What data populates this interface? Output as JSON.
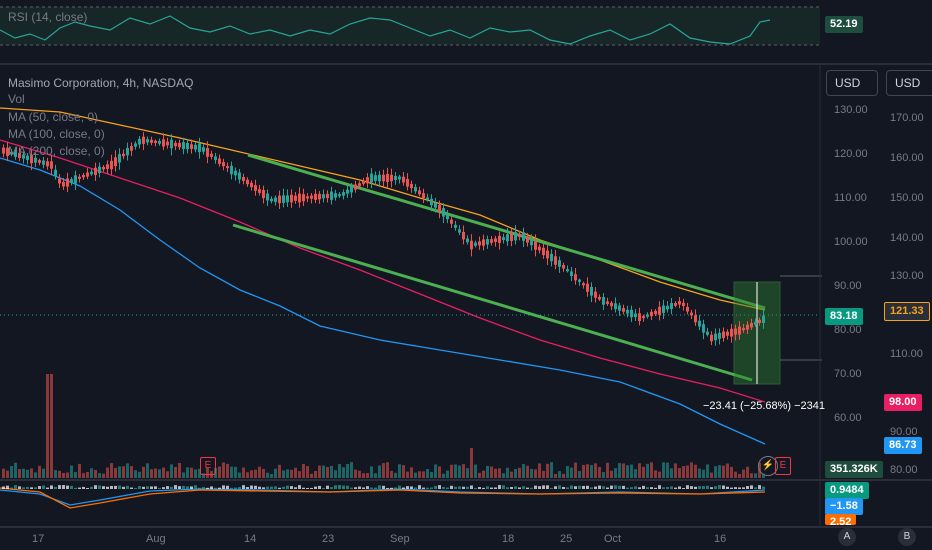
{
  "rsi": {
    "label": "RSI (14, close)",
    "value": "52.19"
  },
  "main": {
    "title": "Masimo Corporation, 4h, NASDAQ",
    "vol": "Vol",
    "ma1": "MA (50, close, 0)",
    "ma2": "MA (100, close, 0)",
    "ma3": "MA (200, close, 0)"
  },
  "currency": [
    "USD",
    "USD"
  ],
  "axis_left": [
    "130.00",
    "120.00",
    "110.00",
    "100.00",
    "90.00",
    "80.00",
    "70.00",
    "60.00"
  ],
  "axis_right": [
    "170.00",
    "160.00",
    "150.00",
    "140.00",
    "130.00",
    "110.00",
    "90.00",
    "80.00"
  ],
  "price_badges": {
    "price": "83.18",
    "other": "121.33",
    "ma_a": "98.00",
    "ma_b": "86.73",
    "volume": "351.326K"
  },
  "macd": {
    "v1": "0.9484",
    "v2": "−1.58",
    "v3": "2.52"
  },
  "measure_label": "−23.41 (−25.68%) −2341",
  "markers": {
    "earnings": "E"
  },
  "x_axis": [
    "17",
    "Aug",
    "14",
    "23",
    "Sep",
    "18",
    "25",
    "Oct",
    "16"
  ],
  "corner": {
    "a": "A",
    "b": "B"
  },
  "colors": {
    "up": "#26a69a",
    "down": "#ef5350",
    "ma_orange": "#f7a21b",
    "ma_red": "#e91e63",
    "ma_blue": "#2196f3",
    "trend": "#4caf50"
  },
  "chart_data": {
    "type": "candlestick",
    "price_last": 83.18,
    "measure_change": -23.41,
    "measure_percent": -25.68
  }
}
